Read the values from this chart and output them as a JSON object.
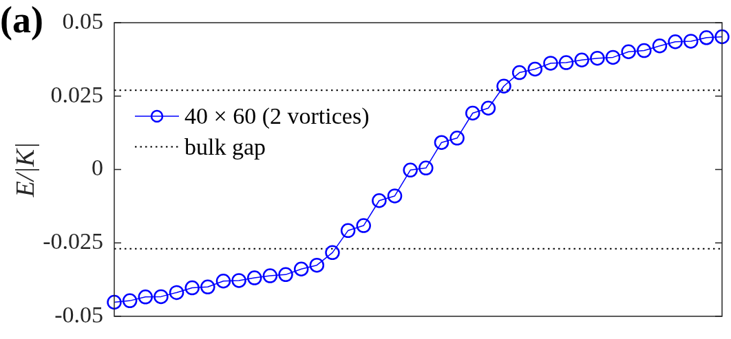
{
  "chart_data": {
    "type": "line",
    "annotations": [
      "(a)"
    ],
    "ylabel": "E/|K|",
    "categories": [
      null,
      null,
      null,
      null,
      null,
      null,
      null,
      null,
      null,
      null,
      null,
      null,
      null,
      null,
      null,
      null,
      null,
      null,
      null,
      null,
      null,
      null,
      null,
      null,
      null,
      null,
      null,
      null,
      null,
      null,
      null,
      null,
      null,
      null,
      null,
      null,
      null,
      null,
      null,
      null
    ],
    "series": [
      {
        "name": "40 × 60 (2 vortices)",
        "color": "#0000ff",
        "values": [
          -0.0452,
          -0.0447,
          -0.0434,
          -0.0433,
          -0.0419,
          -0.0403,
          -0.04,
          -0.038,
          -0.0378,
          -0.0369,
          -0.0362,
          -0.0358,
          -0.0339,
          -0.0326,
          -0.0283,
          -0.0208,
          -0.0191,
          -0.0106,
          -0.009,
          -0.0002,
          0.0005,
          0.0092,
          0.0107,
          0.0192,
          0.0209,
          0.0284,
          0.033,
          0.0342,
          0.0362,
          0.0364,
          0.0373,
          0.0379,
          0.0382,
          0.0401,
          0.0405,
          0.0421,
          0.0435,
          0.0437,
          0.0449,
          0.0452
        ]
      }
    ],
    "ylim": [
      -0.05,
      0.05
    ],
    "yticks": [
      -0.05,
      -0.025,
      0,
      0.025,
      0.05
    ],
    "ref_lines": [
      {
        "axis": "y",
        "value": 0.027,
        "label": "bulk gap",
        "color": "#000000",
        "line_style": "dotted"
      },
      {
        "axis": "y",
        "value": -0.027,
        "color": "#000000",
        "line_style": "dotted"
      }
    ],
    "grid": false,
    "legend": "top left",
    "tick_labels": "y",
    "marker": "circle",
    "line_style": "solid"
  }
}
